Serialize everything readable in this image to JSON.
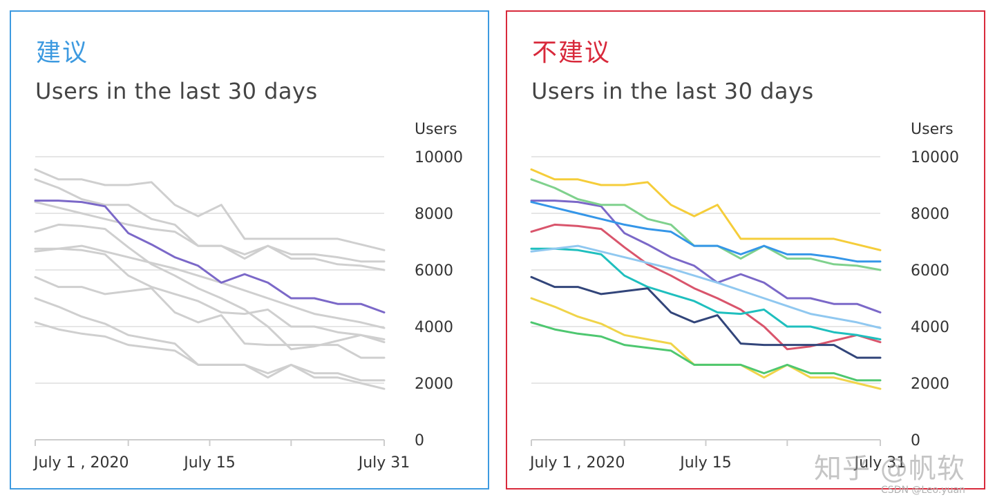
{
  "panels": [
    {
      "tag": "建议",
      "title": "Users in the last 30 days",
      "ylabel": "Users",
      "highlight_color": "#7b68c8",
      "muted_color": "#cfcfcf"
    },
    {
      "tag": "不建议",
      "title": "Users in the last 30 days",
      "ylabel": "Users",
      "highlight_color": "",
      "muted_color": ""
    }
  ],
  "watermark": {
    "main": "知乎 @帆软",
    "small": "CSDN @Leo.yuan"
  },
  "chart_data": [
    {
      "type": "line",
      "title": "Users in the last 30 days",
      "ylabel": "Users",
      "ylim": [
        0,
        10000
      ],
      "yticks": [
        0,
        2000,
        4000,
        6000,
        8000,
        10000
      ],
      "xlim": [
        1,
        31
      ],
      "xtick_positions": [
        1,
        9,
        16,
        23,
        31
      ],
      "xtick_labels": [
        "July 1 , 2020",
        "",
        "July 15",
        "",
        "July 31"
      ],
      "grid": true,
      "highlight_series": "S1",
      "series": [
        {
          "name": "S1",
          "color": "#7b68c8",
          "x": [
            1,
            3,
            5,
            7,
            9,
            11,
            13,
            15,
            17,
            19,
            21,
            23,
            25,
            27,
            29,
            31
          ],
          "values": [
            8450,
            8450,
            8400,
            8250,
            7300,
            6900,
            6450,
            6150,
            5550,
            5850,
            5550,
            5000,
            5000,
            4800,
            4800,
            4500
          ]
        },
        {
          "name": "S2",
          "color": "#f5cd3a",
          "x": [
            1,
            3,
            5,
            7,
            9,
            11,
            13,
            15,
            17,
            19,
            21,
            23,
            25,
            27,
            29,
            31
          ],
          "values": [
            9550,
            9200,
            9200,
            9000,
            9000,
            9100,
            8300,
            7900,
            8300,
            7100,
            7100,
            7100,
            7100,
            7100,
            6900,
            6700
          ]
        },
        {
          "name": "S3",
          "color": "#7fd18d",
          "x": [
            1,
            3,
            5,
            7,
            9,
            11,
            13,
            15,
            17,
            19,
            21,
            23,
            25,
            27,
            29,
            31
          ],
          "values": [
            9200,
            8900,
            8500,
            8300,
            8300,
            7800,
            7600,
            6850,
            6850,
            6400,
            6850,
            6400,
            6400,
            6200,
            6150,
            6000
          ]
        },
        {
          "name": "S4",
          "color": "#3596e8",
          "x": [
            1,
            3,
            5,
            7,
            9,
            11,
            13,
            15,
            17,
            19,
            21,
            23,
            25,
            27,
            29,
            31
          ],
          "values": [
            8400,
            8200,
            8000,
            7800,
            7600,
            7450,
            7350,
            6850,
            6850,
            6550,
            6850,
            6550,
            6550,
            6450,
            6300,
            6300
          ]
        },
        {
          "name": "S5",
          "color": "#d9556c",
          "x": [
            1,
            3,
            5,
            7,
            9,
            11,
            13,
            15,
            17,
            19,
            21,
            23,
            25,
            27,
            29,
            31
          ],
          "values": [
            7350,
            7600,
            7550,
            7450,
            6800,
            6200,
            5800,
            5350,
            5000,
            4600,
            4000,
            3200,
            3300,
            3500,
            3700,
            3450
          ]
        },
        {
          "name": "S6",
          "color": "#1fbfbe",
          "x": [
            1,
            3,
            5,
            7,
            9,
            11,
            13,
            15,
            17,
            19,
            21,
            23,
            25,
            27,
            29,
            31
          ],
          "values": [
            6750,
            6750,
            6700,
            6550,
            5800,
            5400,
            5150,
            4900,
            4500,
            4450,
            4600,
            4000,
            4000,
            3800,
            3700,
            3550
          ]
        },
        {
          "name": "S7",
          "color": "#90c8f0",
          "x": [
            1,
            5,
            9,
            13,
            17,
            21,
            25,
            29,
            31
          ],
          "values": [
            6650,
            6850,
            6450,
            6050,
            5550,
            5000,
            4450,
            4150,
            3950
          ]
        },
        {
          "name": "S8",
          "color": "#32457a",
          "x": [
            1,
            3,
            5,
            7,
            9,
            11,
            13,
            15,
            17,
            19,
            21,
            23,
            25,
            27,
            29,
            31
          ],
          "values": [
            5750,
            5400,
            5400,
            5150,
            5250,
            5350,
            4500,
            4150,
            4400,
            3400,
            3350,
            3350,
            3350,
            3350,
            2900,
            2900
          ]
        },
        {
          "name": "S9",
          "color": "#f0d44a",
          "x": [
            1,
            3,
            5,
            7,
            9,
            11,
            13,
            15,
            17,
            19,
            21,
            23,
            25,
            27,
            29,
            31
          ],
          "values": [
            5000,
            4700,
            4350,
            4100,
            3700,
            3550,
            3400,
            2650,
            2650,
            2650,
            2200,
            2650,
            2200,
            2200,
            2000,
            1800
          ]
        },
        {
          "name": "S10",
          "color": "#4ec770",
          "x": [
            1,
            3,
            5,
            7,
            9,
            11,
            13,
            15,
            17,
            19,
            21,
            23,
            25,
            27,
            29,
            31
          ],
          "values": [
            4150,
            3900,
            3750,
            3650,
            3350,
            3250,
            3150,
            2650,
            2650,
            2650,
            2350,
            2650,
            2350,
            2350,
            2100,
            2100
          ]
        }
      ]
    },
    {
      "type": "line",
      "title": "Users in the last 30 days",
      "ylabel": "Users",
      "ylim": [
        0,
        10000
      ],
      "yticks": [
        0,
        2000,
        4000,
        6000,
        8000,
        10000
      ],
      "xlim": [
        1,
        31
      ],
      "xtick_positions": [
        1,
        9,
        16,
        23,
        31
      ],
      "xtick_labels": [
        "July 1 , 2020",
        "",
        "July 15",
        "",
        "July 31"
      ],
      "grid": true,
      "highlight_series": "",
      "series": [
        {
          "name": "S1",
          "color": "#7b68c8",
          "x": [
            1,
            3,
            5,
            7,
            9,
            11,
            13,
            15,
            17,
            19,
            21,
            23,
            25,
            27,
            29,
            31
          ],
          "values": [
            8450,
            8450,
            8400,
            8250,
            7300,
            6900,
            6450,
            6150,
            5550,
            5850,
            5550,
            5000,
            5000,
            4800,
            4800,
            4500
          ]
        },
        {
          "name": "S2",
          "color": "#f5cd3a",
          "x": [
            1,
            3,
            5,
            7,
            9,
            11,
            13,
            15,
            17,
            19,
            21,
            23,
            25,
            27,
            29,
            31
          ],
          "values": [
            9550,
            9200,
            9200,
            9000,
            9000,
            9100,
            8300,
            7900,
            8300,
            7100,
            7100,
            7100,
            7100,
            7100,
            6900,
            6700
          ]
        },
        {
          "name": "S3",
          "color": "#7fd18d",
          "x": [
            1,
            3,
            5,
            7,
            9,
            11,
            13,
            15,
            17,
            19,
            21,
            23,
            25,
            27,
            29,
            31
          ],
          "values": [
            9200,
            8900,
            8500,
            8300,
            8300,
            7800,
            7600,
            6850,
            6850,
            6400,
            6850,
            6400,
            6400,
            6200,
            6150,
            6000
          ]
        },
        {
          "name": "S4",
          "color": "#3596e8",
          "x": [
            1,
            3,
            5,
            7,
            9,
            11,
            13,
            15,
            17,
            19,
            21,
            23,
            25,
            27,
            29,
            31
          ],
          "values": [
            8400,
            8200,
            8000,
            7800,
            7600,
            7450,
            7350,
            6850,
            6850,
            6550,
            6850,
            6550,
            6550,
            6450,
            6300,
            6300
          ]
        },
        {
          "name": "S5",
          "color": "#d9556c",
          "x": [
            1,
            3,
            5,
            7,
            9,
            11,
            13,
            15,
            17,
            19,
            21,
            23,
            25,
            27,
            29,
            31
          ],
          "values": [
            7350,
            7600,
            7550,
            7450,
            6800,
            6200,
            5800,
            5350,
            5000,
            4600,
            4000,
            3200,
            3300,
            3500,
            3700,
            3450
          ]
        },
        {
          "name": "S6",
          "color": "#1fbfbe",
          "x": [
            1,
            3,
            5,
            7,
            9,
            11,
            13,
            15,
            17,
            19,
            21,
            23,
            25,
            27,
            29,
            31
          ],
          "values": [
            6750,
            6750,
            6700,
            6550,
            5800,
            5400,
            5150,
            4900,
            4500,
            4450,
            4600,
            4000,
            4000,
            3800,
            3700,
            3550
          ]
        },
        {
          "name": "S7",
          "color": "#90c8f0",
          "x": [
            1,
            5,
            9,
            13,
            17,
            21,
            25,
            29,
            31
          ],
          "values": [
            6650,
            6850,
            6450,
            6050,
            5550,
            5000,
            4450,
            4150,
            3950
          ]
        },
        {
          "name": "S8",
          "color": "#32457a",
          "x": [
            1,
            3,
            5,
            7,
            9,
            11,
            13,
            15,
            17,
            19,
            21,
            23,
            25,
            27,
            29,
            31
          ],
          "values": [
            5750,
            5400,
            5400,
            5150,
            5250,
            5350,
            4500,
            4150,
            4400,
            3400,
            3350,
            3350,
            3350,
            3350,
            2900,
            2900
          ]
        },
        {
          "name": "S9",
          "color": "#f0d44a",
          "x": [
            1,
            3,
            5,
            7,
            9,
            11,
            13,
            15,
            17,
            19,
            21,
            23,
            25,
            27,
            29,
            31
          ],
          "values": [
            5000,
            4700,
            4350,
            4100,
            3700,
            3550,
            3400,
            2650,
            2650,
            2650,
            2200,
            2650,
            2200,
            2200,
            2000,
            1800
          ]
        },
        {
          "name": "S10",
          "color": "#4ec770",
          "x": [
            1,
            3,
            5,
            7,
            9,
            11,
            13,
            15,
            17,
            19,
            21,
            23,
            25,
            27,
            29,
            31
          ],
          "values": [
            4150,
            3900,
            3750,
            3650,
            3350,
            3250,
            3150,
            2650,
            2650,
            2650,
            2350,
            2650,
            2350,
            2350,
            2100,
            2100
          ]
        }
      ]
    }
  ]
}
